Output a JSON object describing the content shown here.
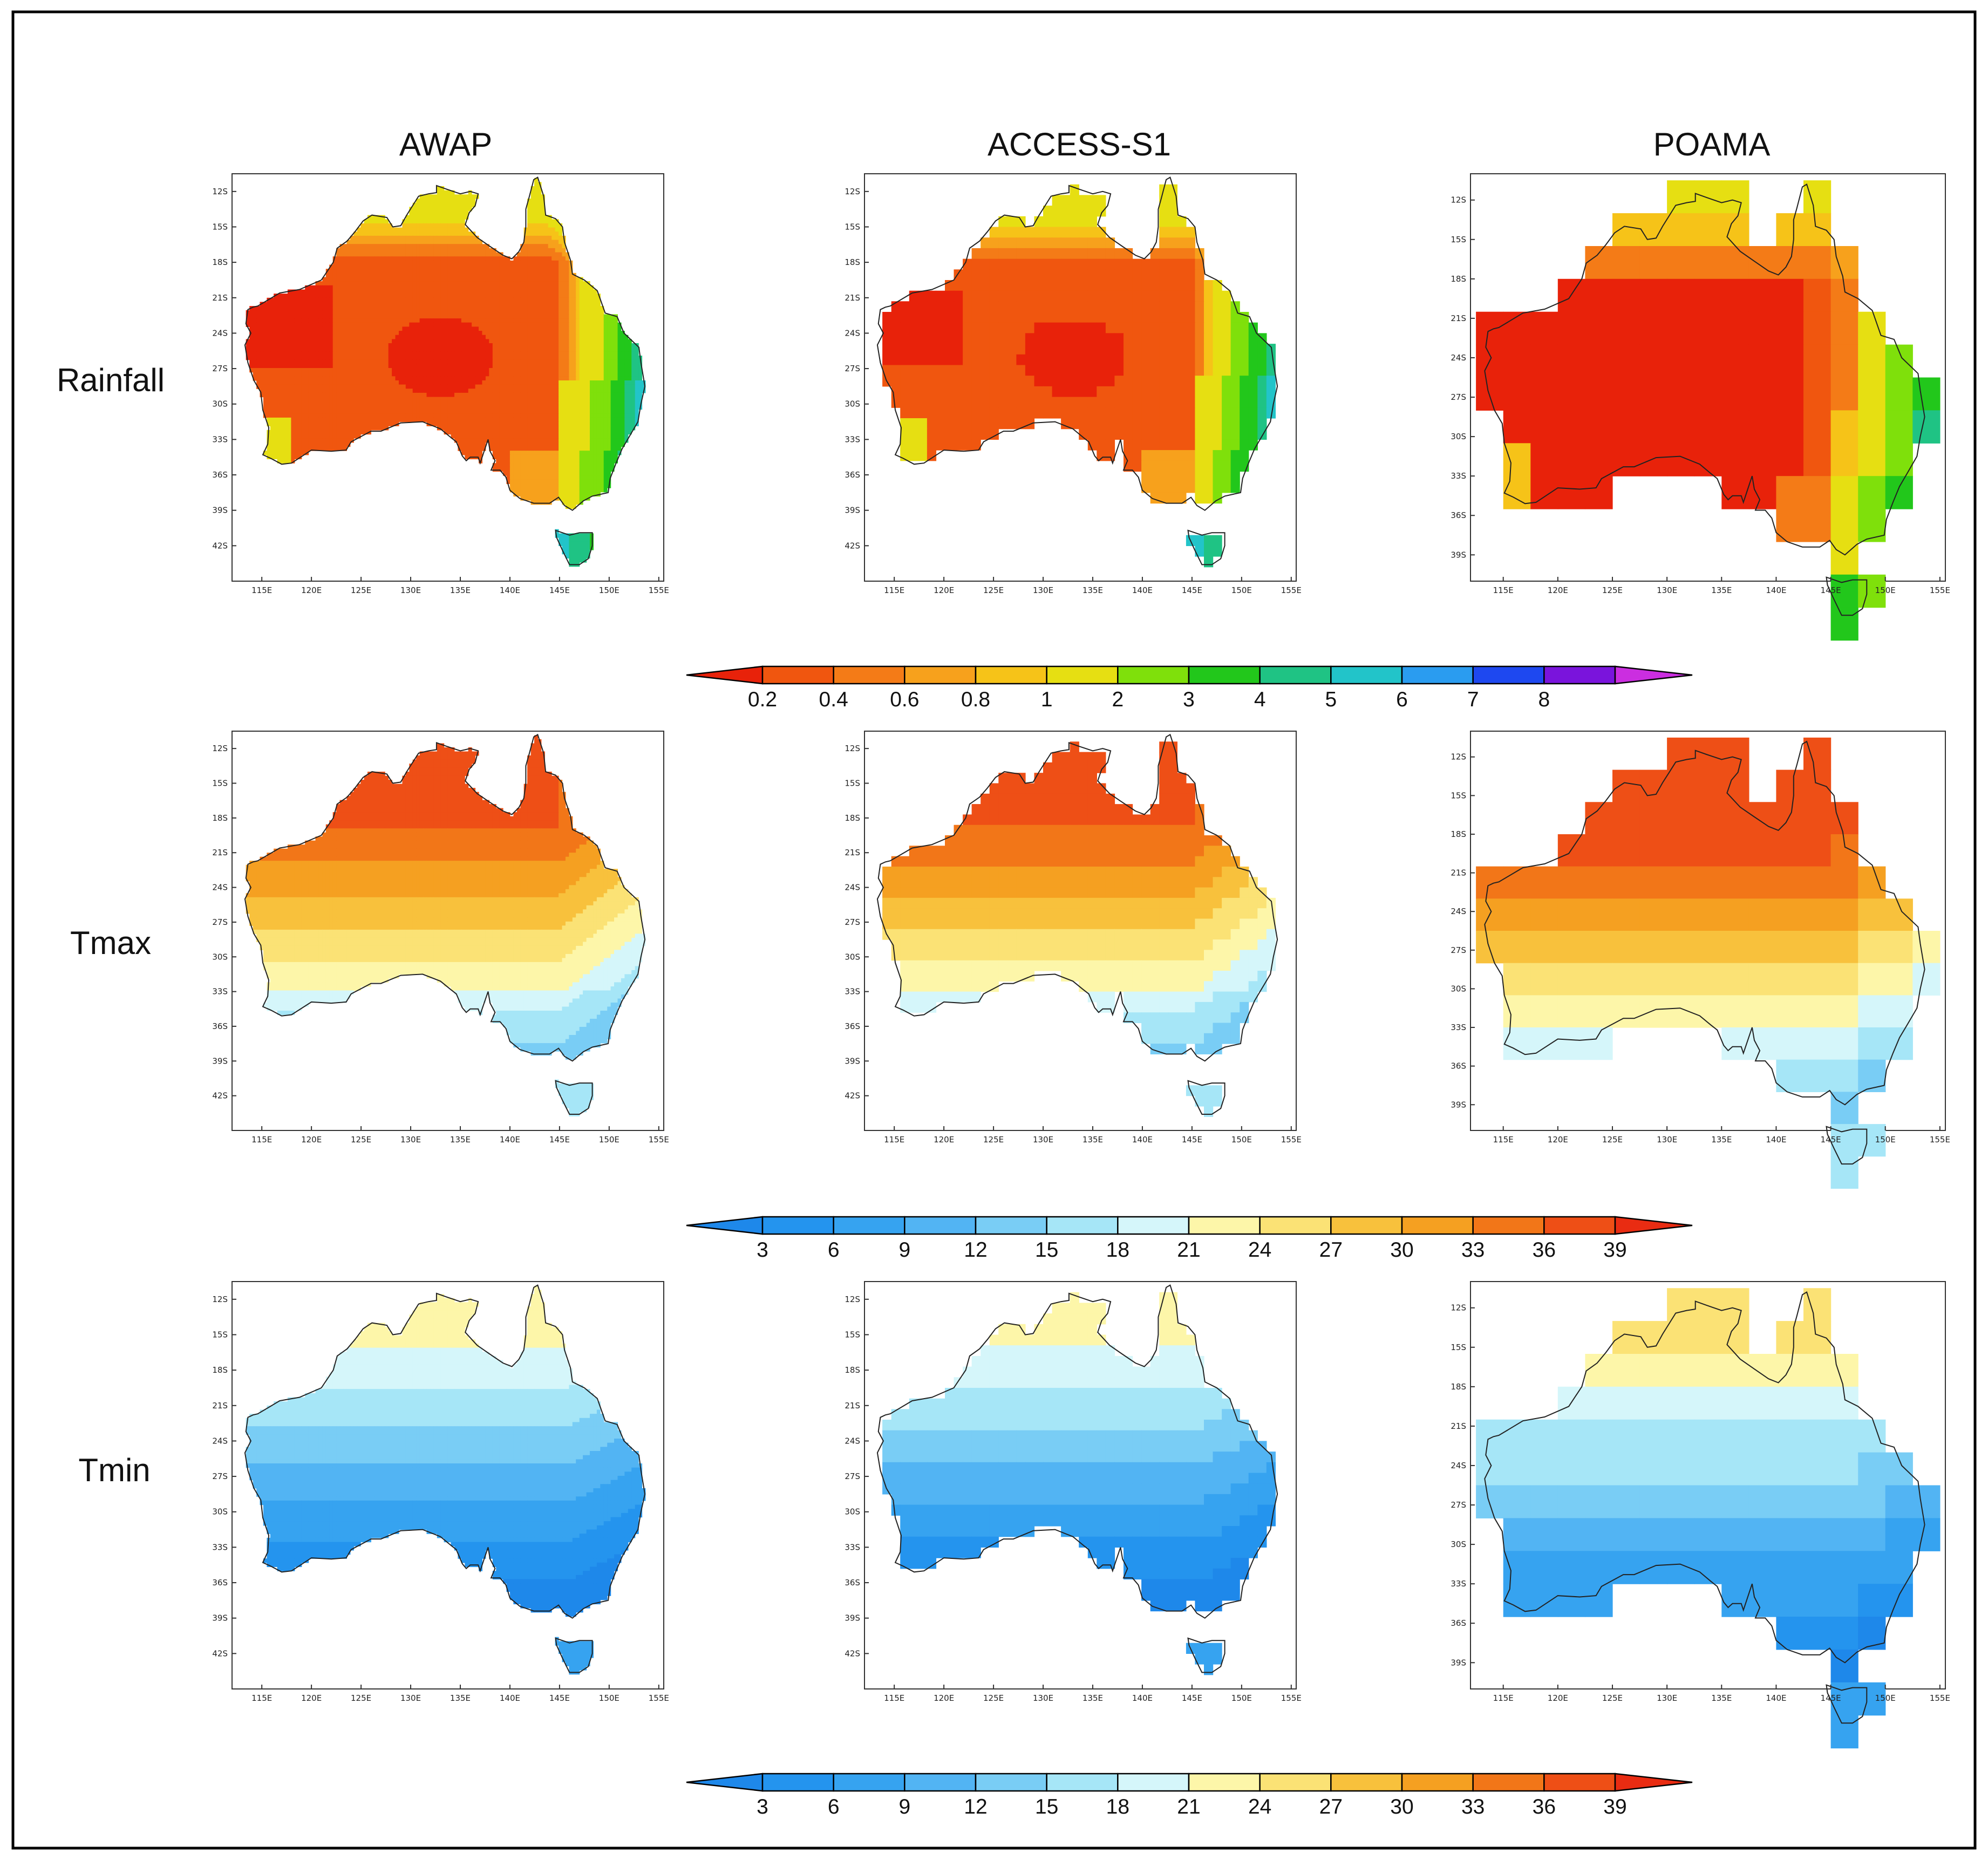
{
  "columns": [
    "AWAP",
    "ACCESS-S1",
    "POAMA"
  ],
  "rows": [
    "Rainfall",
    "Tmax",
    "Tmin"
  ],
  "colors": {
    "rain_scale": [
      "#e8220a",
      "#f0560f",
      "#f47b17",
      "#f7a11c",
      "#f6c318",
      "#e6df12",
      "#7fe00b",
      "#22c71b",
      "#1fc384",
      "#22c4c9",
      "#2a9cf0",
      "#1e48f0",
      "#7a14dc",
      "#cb2ee0"
    ],
    "temp_scale": [
      "#1e88ea",
      "#2494ee",
      "#36a3f0",
      "#52b4f3",
      "#79cdf5",
      "#a6e6f7",
      "#d5f6fa",
      "#fdf6a9",
      "#fbe275",
      "#f8c13c",
      "#f5a021",
      "#f27618",
      "#ee4f16",
      "#e92c12"
    ]
  },
  "colorbars": [
    {
      "labels": [
        "0.2",
        "0.4",
        "0.6",
        "0.8",
        "1",
        "2",
        "3",
        "4",
        "5",
        "6",
        "7",
        "8"
      ]
    },
    {
      "labels": [
        "3",
        "6",
        "9",
        "12",
        "15",
        "18",
        "21",
        "24",
        "27",
        "30",
        "33",
        "36",
        "39"
      ]
    },
    {
      "labels": [
        "3",
        "6",
        "9",
        "12",
        "15",
        "18",
        "21",
        "24",
        "27",
        "30",
        "33",
        "36",
        "39"
      ]
    }
  ],
  "axes": {
    "lat_labels_awap": [
      "12S",
      "15S",
      "18S",
      "21S",
      "24S",
      "27S",
      "30S",
      "33S",
      "36S",
      "39S",
      "42S"
    ],
    "lat_labels_poama": [
      "12S",
      "15S",
      "18S",
      "21S",
      "24S",
      "27S",
      "30S",
      "33S",
      "36S",
      "39S"
    ],
    "lon_labels": [
      "115E",
      "120E",
      "125E",
      "130E",
      "135E",
      "140E",
      "145E",
      "150E",
      "155E"
    ]
  }
}
